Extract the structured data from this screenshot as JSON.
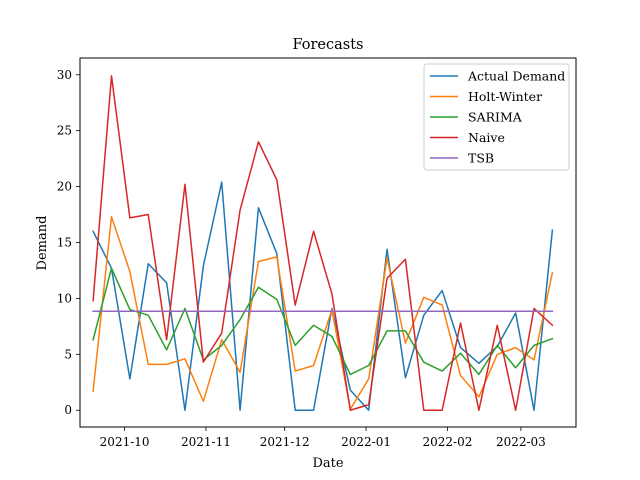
{
  "chart_data": {
    "type": "line",
    "title": "Forecasts",
    "xlabel": "Date",
    "ylabel": "Demand",
    "x_axis": "date",
    "xlim": [
      "2021-09-14",
      "2022-03-22"
    ],
    "ylim": [
      -1.5,
      31.5
    ],
    "x_ticks": [
      {
        "date": "2021-10-01",
        "label": "2021-10"
      },
      {
        "date": "2021-11-01",
        "label": "2021-11"
      },
      {
        "date": "2021-12-01",
        "label": "2021-12"
      },
      {
        "date": "2022-01-01",
        "label": "2022-01"
      },
      {
        "date": "2022-02-01",
        "label": "2022-02"
      },
      {
        "date": "2022-03-01",
        "label": "2022-03"
      }
    ],
    "y_ticks": [
      0,
      5,
      10,
      15,
      20,
      25,
      30
    ],
    "grid": false,
    "legend": "top-right",
    "x": [
      "2021-09-19",
      "2021-09-26",
      "2021-10-03",
      "2021-10-10",
      "2021-10-17",
      "2021-10-24",
      "2021-10-31",
      "2021-11-07",
      "2021-11-14",
      "2021-11-21",
      "2021-11-28",
      "2021-12-05",
      "2021-12-12",
      "2021-12-19",
      "2021-12-26",
      "2022-01-02",
      "2022-01-09",
      "2022-01-16",
      "2022-01-23",
      "2022-01-30",
      "2022-02-06",
      "2022-02-13",
      "2022-02-20",
      "2022-02-27",
      "2022-03-06",
      "2022-03-13"
    ],
    "series": [
      {
        "name": "Actual Demand",
        "color": "#1f77b4",
        "values": [
          16.0,
          12.7,
          2.8,
          13.1,
          11.4,
          0.0,
          12.9,
          20.4,
          0.0,
          18.1,
          14.0,
          0.0,
          0.0,
          9.1,
          1.8,
          0.0,
          14.4,
          2.9,
          8.5,
          10.7,
          5.6,
          4.2,
          5.7,
          8.7,
          0.0,
          16.1
        ]
      },
      {
        "name": "Holt-Winter",
        "color": "#ff7f0e",
        "values": [
          1.7,
          17.3,
          12.4,
          4.1,
          4.1,
          4.6,
          0.8,
          6.3,
          3.4,
          13.3,
          13.7,
          3.5,
          4.0,
          9.0,
          0.1,
          2.8,
          13.6,
          6.0,
          10.1,
          9.4,
          3.1,
          1.2,
          5.0,
          5.6,
          4.5,
          12.3
        ]
      },
      {
        "name": "SARIMA",
        "color": "#2ca02c",
        "values": [
          6.3,
          12.7,
          9.0,
          8.5,
          5.4,
          9.1,
          4.5,
          5.8,
          8.1,
          11.0,
          9.9,
          5.8,
          7.6,
          6.6,
          3.2,
          4.0,
          7.1,
          7.1,
          4.3,
          3.5,
          5.1,
          3.2,
          5.8,
          3.8,
          5.8,
          6.4
        ]
      },
      {
        "name": "Naive",
        "color": "#d62728",
        "values": [
          9.8,
          29.9,
          17.2,
          17.5,
          6.3,
          20.2,
          4.3,
          6.9,
          17.9,
          24.0,
          20.6,
          9.4,
          16.0,
          10.4,
          0.0,
          0.5,
          11.8,
          13.5,
          0.0,
          0.0,
          7.8,
          0.0,
          7.6,
          0.0,
          9.1,
          7.6
        ]
      },
      {
        "name": "TSB",
        "color": "#9467bd",
        "values": [
          8.85,
          8.85,
          8.85,
          8.85,
          8.85,
          8.85,
          8.85,
          8.85,
          8.85,
          8.85,
          8.85,
          8.85,
          8.85,
          8.85,
          8.85,
          8.85,
          8.85,
          8.85,
          8.85,
          8.85,
          8.85,
          8.85,
          8.85,
          8.85,
          8.85,
          8.85
        ]
      }
    ]
  }
}
